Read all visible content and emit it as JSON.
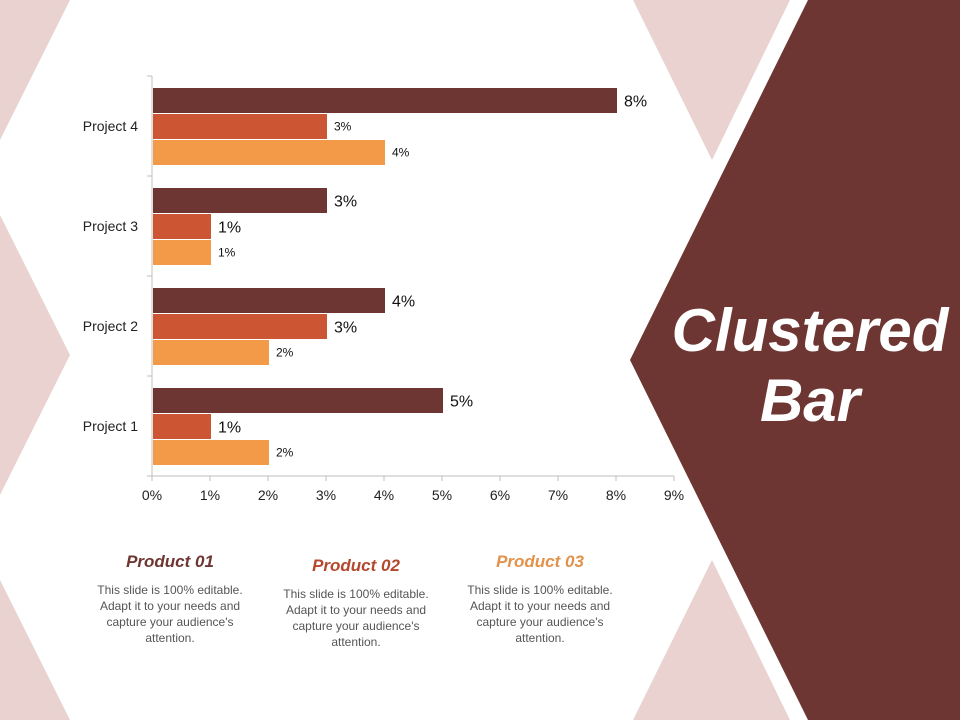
{
  "slide": {
    "title_line1": "Clustered",
    "title_line2": "Bar"
  },
  "colors": {
    "panel": "#6E3632",
    "pink": "#E9D2CF",
    "series1": "#6E3632",
    "series2": "#CC5533",
    "series3": "#F29A48"
  },
  "chart_data": {
    "type": "bar",
    "orientation": "horizontal",
    "categories": [
      "Project 1",
      "Project 2",
      "Project 3",
      "Project 4"
    ],
    "series": [
      {
        "name": "Product 01",
        "values": [
          5,
          4,
          3,
          8
        ],
        "labels": [
          "5%",
          "4%",
          "3%",
          "8%"
        ]
      },
      {
        "name": "Product 02",
        "values": [
          1,
          3,
          1,
          3
        ],
        "labels": [
          "1%",
          "3%",
          "1%",
          "3%"
        ]
      },
      {
        "name": "Product 03",
        "values": [
          2,
          2,
          1,
          4
        ],
        "labels": [
          "2%",
          "2%",
          "1%",
          "4%"
        ]
      }
    ],
    "xlim": [
      0,
      9
    ],
    "xticks": [
      "0%",
      "1%",
      "2%",
      "3%",
      "4%",
      "5%",
      "6%",
      "7%",
      "8%",
      "9%"
    ],
    "grid": false
  },
  "products": [
    {
      "title": "Product 01",
      "text": "This slide is 100% editable. Adapt it to your needs and capture your audience's attention."
    },
    {
      "title": "Product 02",
      "text": "This slide is 100% editable. Adapt it to your needs and capture your audience's attention."
    },
    {
      "title": "Product 03",
      "text": "This slide is 100% editable. Adapt it to your needs and capture your audience's attention."
    }
  ]
}
